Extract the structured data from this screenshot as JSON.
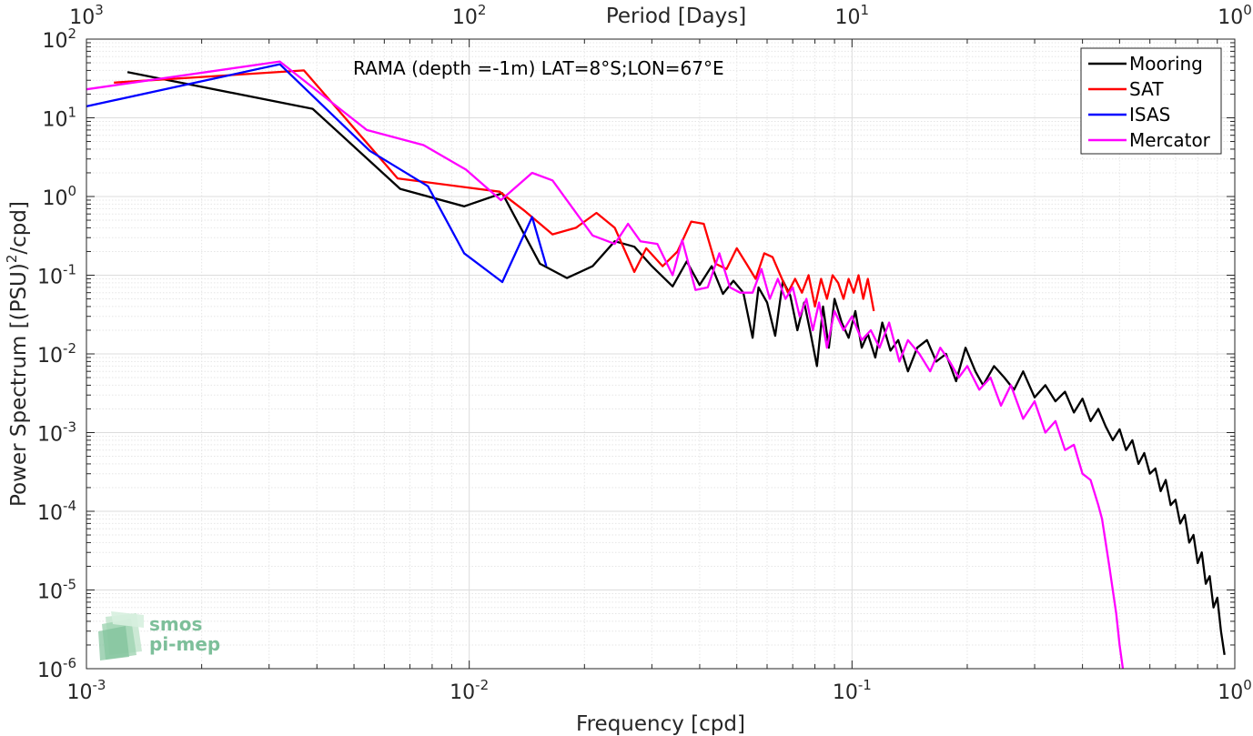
{
  "chart_data": {
    "type": "line",
    "title": "RAMA (depth =-1m) LAT=8°S;LON=67°E",
    "xlabel": "Frequency [cpd]",
    "ylabel_main": "Power Spectrum [(PSU)",
    "ylabel_sup": "2",
    "ylabel_tail": "/cpd]",
    "top_xlabel": "Period [Days]",
    "xscale": "log",
    "yscale": "log",
    "xlim": [
      0.001,
      1
    ],
    "ylim": [
      1e-06,
      100
    ],
    "grid": true,
    "legend_position": "top-right",
    "x_ticks": [
      {
        "base": "10",
        "exp": "-3",
        "value": 0.001
      },
      {
        "base": "10",
        "exp": "-2",
        "value": 0.01
      },
      {
        "base": "10",
        "exp": "-1",
        "value": 0.1
      },
      {
        "base": "10",
        "exp": "0",
        "value": 1
      }
    ],
    "top_ticks": [
      {
        "base": "10",
        "exp": "3",
        "value": 0.001
      },
      {
        "base": "10",
        "exp": "2",
        "value": 0.01
      },
      {
        "base": "10",
        "exp": "1",
        "value": 0.1
      },
      {
        "base": "10",
        "exp": "0",
        "value": 1
      }
    ],
    "y_ticks": [
      {
        "base": "10",
        "exp": "2",
        "value": 100
      },
      {
        "base": "10",
        "exp": "1",
        "value": 10
      },
      {
        "base": "10",
        "exp": "0",
        "value": 1
      },
      {
        "base": "10",
        "exp": "-1",
        "value": 0.1
      },
      {
        "base": "10",
        "exp": "-2",
        "value": 0.01
      },
      {
        "base": "10",
        "exp": "-3",
        "value": 0.001
      },
      {
        "base": "10",
        "exp": "-4",
        "value": 0.0001
      },
      {
        "base": "10",
        "exp": "-5",
        "value": 1e-05
      },
      {
        "base": "10",
        "exp": "-6",
        "value": 1e-06
      }
    ],
    "series": [
      {
        "name": "Mooring",
        "color": "#000000",
        "x": [
          0.00128,
          0.0039,
          0.0066,
          0.0097,
          0.0122,
          0.0153,
          0.018,
          0.021,
          0.024,
          0.027,
          0.03,
          0.034,
          0.037,
          0.04,
          0.043,
          0.046,
          0.049,
          0.052,
          0.055,
          0.057,
          0.06,
          0.063,
          0.066,
          0.069,
          0.072,
          0.075,
          0.078,
          0.081,
          0.084,
          0.087,
          0.09,
          0.094,
          0.098,
          0.102,
          0.106,
          0.11,
          0.115,
          0.12,
          0.126,
          0.132,
          0.14,
          0.148,
          0.157,
          0.166,
          0.176,
          0.187,
          0.198,
          0.21,
          0.22,
          0.235,
          0.25,
          0.265,
          0.28,
          0.3,
          0.32,
          0.34,
          0.36,
          0.38,
          0.4,
          0.42,
          0.44,
          0.46,
          0.48,
          0.5,
          0.52,
          0.54,
          0.56,
          0.58,
          0.6,
          0.62,
          0.64,
          0.66,
          0.68,
          0.7,
          0.72,
          0.74,
          0.76,
          0.78,
          0.8,
          0.82,
          0.84,
          0.86,
          0.88,
          0.9,
          0.92,
          0.94
        ],
        "y": [
          38,
          13,
          1.25,
          0.75,
          1.1,
          0.14,
          0.092,
          0.13,
          0.27,
          0.23,
          0.13,
          0.072,
          0.15,
          0.075,
          0.13,
          0.058,
          0.085,
          0.06,
          0.016,
          0.07,
          0.045,
          0.017,
          0.085,
          0.055,
          0.02,
          0.045,
          0.018,
          0.007,
          0.04,
          0.012,
          0.05,
          0.025,
          0.016,
          0.035,
          0.012,
          0.018,
          0.009,
          0.025,
          0.011,
          0.015,
          0.006,
          0.012,
          0.015,
          0.008,
          0.01,
          0.0045,
          0.012,
          0.006,
          0.004,
          0.007,
          0.005,
          0.0035,
          0.006,
          0.0028,
          0.004,
          0.0025,
          0.0033,
          0.0018,
          0.0027,
          0.0014,
          0.002,
          0.0012,
          0.0008,
          0.0011,
          0.0006,
          0.0008,
          0.0004,
          0.00055,
          0.0003,
          0.00035,
          0.00018,
          0.00025,
          0.00012,
          0.00014,
          7e-05,
          9e-05,
          4e-05,
          5e-05,
          2.2e-05,
          3e-05,
          1.2e-05,
          1.5e-05,
          6e-06,
          8e-06,
          3e-06,
          1.5e-06
        ]
      },
      {
        "name": "SAT",
        "color": "#ff0000",
        "x": [
          0.00118,
          0.0037,
          0.0065,
          0.012,
          0.014,
          0.0165,
          0.019,
          0.0215,
          0.024,
          0.027,
          0.029,
          0.032,
          0.035,
          0.038,
          0.041,
          0.044,
          0.047,
          0.05,
          0.053,
          0.056,
          0.059,
          0.062,
          0.065,
          0.068,
          0.071,
          0.074,
          0.077,
          0.08,
          0.083,
          0.086,
          0.089,
          0.092,
          0.095,
          0.098,
          0.101,
          0.104,
          0.107,
          0.11,
          0.114
        ],
        "y": [
          28,
          40,
          1.7,
          1.15,
          0.65,
          0.33,
          0.4,
          0.62,
          0.4,
          0.11,
          0.22,
          0.13,
          0.2,
          0.48,
          0.45,
          0.14,
          0.12,
          0.22,
          0.14,
          0.09,
          0.19,
          0.17,
          0.1,
          0.06,
          0.09,
          0.06,
          0.1,
          0.04,
          0.09,
          0.05,
          0.1,
          0.08,
          0.05,
          0.09,
          0.06,
          0.1,
          0.05,
          0.09,
          0.035
        ]
      },
      {
        "name": "ISAS",
        "color": "#0000ff",
        "x": [
          0.001,
          0.0032,
          0.0055,
          0.0078,
          0.0097,
          0.0122,
          0.0146,
          0.0159
        ],
        "y": [
          14,
          48,
          3.8,
          1.35,
          0.19,
          0.082,
          0.55,
          0.13
        ]
      },
      {
        "name": "Mercator",
        "color": "#ff00ff",
        "x": [
          0.001,
          0.0032,
          0.0054,
          0.0076,
          0.0098,
          0.0121,
          0.0146,
          0.0165,
          0.021,
          0.024,
          0.026,
          0.028,
          0.031,
          0.034,
          0.036,
          0.039,
          0.042,
          0.045,
          0.048,
          0.051,
          0.055,
          0.058,
          0.061,
          0.064,
          0.067,
          0.07,
          0.073,
          0.076,
          0.079,
          0.082,
          0.086,
          0.09,
          0.095,
          0.1,
          0.106,
          0.112,
          0.118,
          0.125,
          0.133,
          0.14,
          0.15,
          0.16,
          0.17,
          0.18,
          0.19,
          0.2,
          0.215,
          0.23,
          0.245,
          0.26,
          0.28,
          0.3,
          0.32,
          0.34,
          0.36,
          0.38,
          0.4,
          0.42,
          0.44,
          0.45,
          0.46,
          0.47,
          0.48,
          0.49,
          0.5,
          0.51
        ],
        "y": [
          23,
          52,
          7,
          4.5,
          2.2,
          0.9,
          2.0,
          1.6,
          0.32,
          0.25,
          0.45,
          0.27,
          0.25,
          0.1,
          0.28,
          0.065,
          0.07,
          0.19,
          0.07,
          0.06,
          0.06,
          0.12,
          0.05,
          0.09,
          0.05,
          0.07,
          0.03,
          0.05,
          0.02,
          0.045,
          0.012,
          0.035,
          0.02,
          0.03,
          0.015,
          0.02,
          0.012,
          0.025,
          0.008,
          0.015,
          0.01,
          0.006,
          0.012,
          0.008,
          0.005,
          0.007,
          0.0035,
          0.005,
          0.0022,
          0.004,
          0.0015,
          0.0025,
          0.001,
          0.0014,
          0.0006,
          0.0007,
          0.0003,
          0.00025,
          0.00012,
          8e-05,
          4e-05,
          2e-05,
          1e-05,
          5e-06,
          2e-06,
          1e-06
        ]
      }
    ]
  },
  "logo": {
    "line1": "smos",
    "line2": "pi-mep"
  }
}
